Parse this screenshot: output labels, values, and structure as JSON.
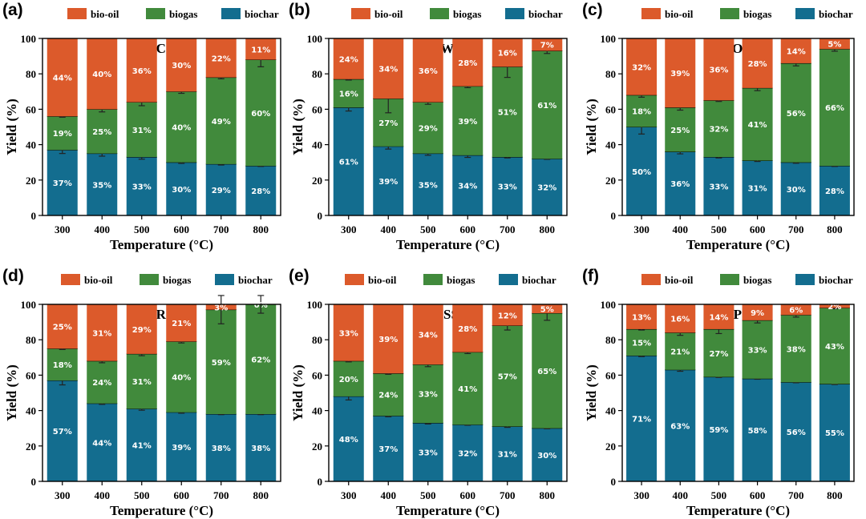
{
  "colors": {
    "biochar": "#136d8f",
    "biogas": "#418a3c",
    "bio_oil": "#dc5a2b"
  },
  "legend": [
    "bio-oil",
    "biogas",
    "biochar"
  ],
  "chart_data": [
    {
      "type": "bar",
      "stacked": true,
      "panel": "(a)",
      "title": "CS",
      "categories": [
        "300",
        "400",
        "500",
        "600",
        "700",
        "800"
      ],
      "xlabel": "Temperature (°C)",
      "ylabel": "Yield (%)",
      "ylim": [
        0,
        100
      ],
      "yticks": [
        "0",
        "20",
        "40",
        "60",
        "80",
        "100"
      ],
      "series": [
        {
          "name": "biochar",
          "values": [
            37,
            35,
            33,
            30,
            29,
            28
          ],
          "errors": [
            2,
            1.5,
            1.2,
            0.6,
            0.5,
            0.3
          ],
          "labels": [
            "37%",
            "35%",
            "33%",
            "30%",
            "29%",
            "28%"
          ]
        },
        {
          "name": "biogas",
          "values": [
            19,
            25,
            31,
            40,
            49,
            60
          ],
          "errors": [
            0.5,
            1.5,
            2,
            1,
            0.8,
            4
          ],
          "labels": [
            "19%",
            "25%",
            "31%",
            "40%",
            "49%",
            "60%"
          ]
        },
        {
          "name": "bio-oil",
          "values": [
            44,
            40,
            36,
            30,
            22,
            11
          ],
          "labels": [
            "44%",
            "40%",
            "36%",
            "30%",
            "22%",
            "11%"
          ]
        }
      ]
    },
    {
      "type": "bar",
      "stacked": true,
      "panel": "(b)",
      "title": "WS",
      "categories": [
        "300",
        "400",
        "500",
        "600",
        "700",
        "800"
      ],
      "xlabel": "Temperature (°C)",
      "ylabel": "Yield (%)",
      "ylim": [
        0,
        100
      ],
      "yticks": [
        "0",
        "20",
        "40",
        "60",
        "80",
        "100"
      ],
      "series": [
        {
          "name": "biochar",
          "values": [
            61,
            39,
            35,
            34,
            33,
            32
          ],
          "errors": [
            2,
            1.5,
            1,
            1.2,
            0.5,
            0.3
          ],
          "labels": [
            "61%",
            "39%",
            "35%",
            "34%",
            "33%",
            "32%"
          ]
        },
        {
          "name": "biogas",
          "values": [
            16,
            27,
            29,
            39,
            51,
            61
          ],
          "errors": [
            0.5,
            8,
            1.2,
            0.8,
            6,
            1.5
          ],
          "labels": [
            "16%",
            "27%",
            "29%",
            "39%",
            "51%",
            "61%"
          ]
        },
        {
          "name": "bio-oil",
          "values": [
            24,
            34,
            36,
            28,
            16,
            7
          ],
          "labels": [
            "24%",
            "34%",
            "36%",
            "28%",
            "16%",
            "7%"
          ]
        }
      ]
    },
    {
      "type": "bar",
      "stacked": true,
      "panel": "(c)",
      "title": "OS",
      "categories": [
        "300",
        "400",
        "500",
        "600",
        "700",
        "800"
      ],
      "xlabel": "Temperature (°C)",
      "ylabel": "Yield (%)",
      "ylim": [
        0,
        100
      ],
      "yticks": [
        "0",
        "20",
        "40",
        "60",
        "80",
        "100"
      ],
      "series": [
        {
          "name": "biochar",
          "values": [
            50,
            36,
            33,
            31,
            30,
            28
          ],
          "errors": [
            4,
            1.2,
            0.5,
            0.5,
            0.5,
            0.3
          ],
          "labels": [
            "50%",
            "36%",
            "33%",
            "31%",
            "30%",
            "28%"
          ]
        },
        {
          "name": "biogas",
          "values": [
            18,
            25,
            32,
            41,
            56,
            66
          ],
          "errors": [
            1.2,
            1.5,
            0.6,
            1.5,
            1.5,
            1.2
          ],
          "labels": [
            "18%",
            "25%",
            "32%",
            "41%",
            "56%",
            "66%"
          ]
        },
        {
          "name": "bio-oil",
          "values": [
            32,
            39,
            36,
            28,
            14,
            5
          ],
          "labels": [
            "32%",
            "39%",
            "36%",
            "28%",
            "14%",
            "5%"
          ]
        }
      ]
    },
    {
      "type": "bar",
      "stacked": true,
      "panel": "(d)",
      "title": "RS",
      "categories": [
        "300",
        "400",
        "500",
        "600",
        "700",
        "800"
      ],
      "xlabel": "Temperature (°C)",
      "ylabel": "Yield (%)",
      "ylim": [
        0,
        100
      ],
      "yticks": [
        "0",
        "20",
        "40",
        "60",
        "80",
        "100"
      ],
      "series": [
        {
          "name": "biochar",
          "values": [
            57,
            44,
            41,
            39,
            38,
            38
          ],
          "errors": [
            2.5,
            0.5,
            0.8,
            0.5,
            0.3,
            0.3
          ],
          "labels": [
            "57%",
            "44%",
            "41%",
            "39%",
            "38%",
            "38%"
          ]
        },
        {
          "name": "biogas",
          "values": [
            18,
            24,
            31,
            40,
            59,
            62
          ],
          "errors": [
            0.5,
            1,
            1,
            0.8,
            8,
            5
          ],
          "labels": [
            "18%",
            "24%",
            "31%",
            "40%",
            "59%",
            "62%"
          ]
        },
        {
          "name": "bio-oil",
          "values": [
            25,
            31,
            29,
            21,
            3,
            0
          ],
          "labels": [
            "25%",
            "31%",
            "29%",
            "21%",
            "3%",
            "0%"
          ]
        }
      ]
    },
    {
      "type": "bar",
      "stacked": true,
      "panel": "(e)",
      "title": "SS",
      "categories": [
        "300",
        "400",
        "500",
        "600",
        "700",
        "800"
      ],
      "xlabel": "Temperature (°C)",
      "ylabel": "Yield (%)",
      "ylim": [
        0,
        100
      ],
      "yticks": [
        "0",
        "20",
        "40",
        "60",
        "80",
        "100"
      ],
      "series": [
        {
          "name": "biochar",
          "values": [
            48,
            37,
            33,
            32,
            31,
            30
          ],
          "errors": [
            2,
            0.5,
            0.6,
            0.3,
            0.5,
            0.3
          ],
          "labels": [
            "48%",
            "37%",
            "33%",
            "32%",
            "31%",
            "30%"
          ]
        },
        {
          "name": "biogas",
          "values": [
            20,
            24,
            33,
            41,
            57,
            65
          ],
          "errors": [
            0.5,
            0.5,
            1.2,
            0.8,
            2.5,
            4
          ],
          "labels": [
            "20%",
            "24%",
            "33%",
            "41%",
            "57%",
            "65%"
          ]
        },
        {
          "name": "bio-oil",
          "values": [
            33,
            39,
            34,
            28,
            12,
            5
          ],
          "labels": [
            "33%",
            "39%",
            "34%",
            "28%",
            "12%",
            "5%"
          ]
        }
      ]
    },
    {
      "type": "bar",
      "stacked": true,
      "panel": "(f)",
      "title": "PS",
      "categories": [
        "300",
        "400",
        "500",
        "600",
        "700",
        "800"
      ],
      "xlabel": "Temperature (°C)",
      "ylabel": "Yield (%)",
      "ylim": [
        0,
        100
      ],
      "yticks": [
        "0",
        "20",
        "40",
        "60",
        "80",
        "100"
      ],
      "series": [
        {
          "name": "biochar",
          "values": [
            71,
            63,
            59,
            58,
            56,
            55
          ],
          "errors": [
            0.5,
            0.8,
            0.3,
            0.3,
            0.3,
            0.3
          ],
          "labels": [
            "71%",
            "63%",
            "59%",
            "58%",
            "56%",
            "55%"
          ]
        },
        {
          "name": "biogas",
          "values": [
            15,
            21,
            27,
            33,
            38,
            43
          ],
          "errors": [
            0.5,
            1.5,
            2.5,
            1.5,
            1.2,
            0.5
          ],
          "labels": [
            "15%",
            "21%",
            "27%",
            "33%",
            "38%",
            "43%"
          ]
        },
        {
          "name": "bio-oil",
          "values": [
            13,
            16,
            14,
            9,
            6,
            2
          ],
          "labels": [
            "13%",
            "16%",
            "14%",
            "9%",
            "6%",
            "2%"
          ]
        }
      ]
    }
  ]
}
